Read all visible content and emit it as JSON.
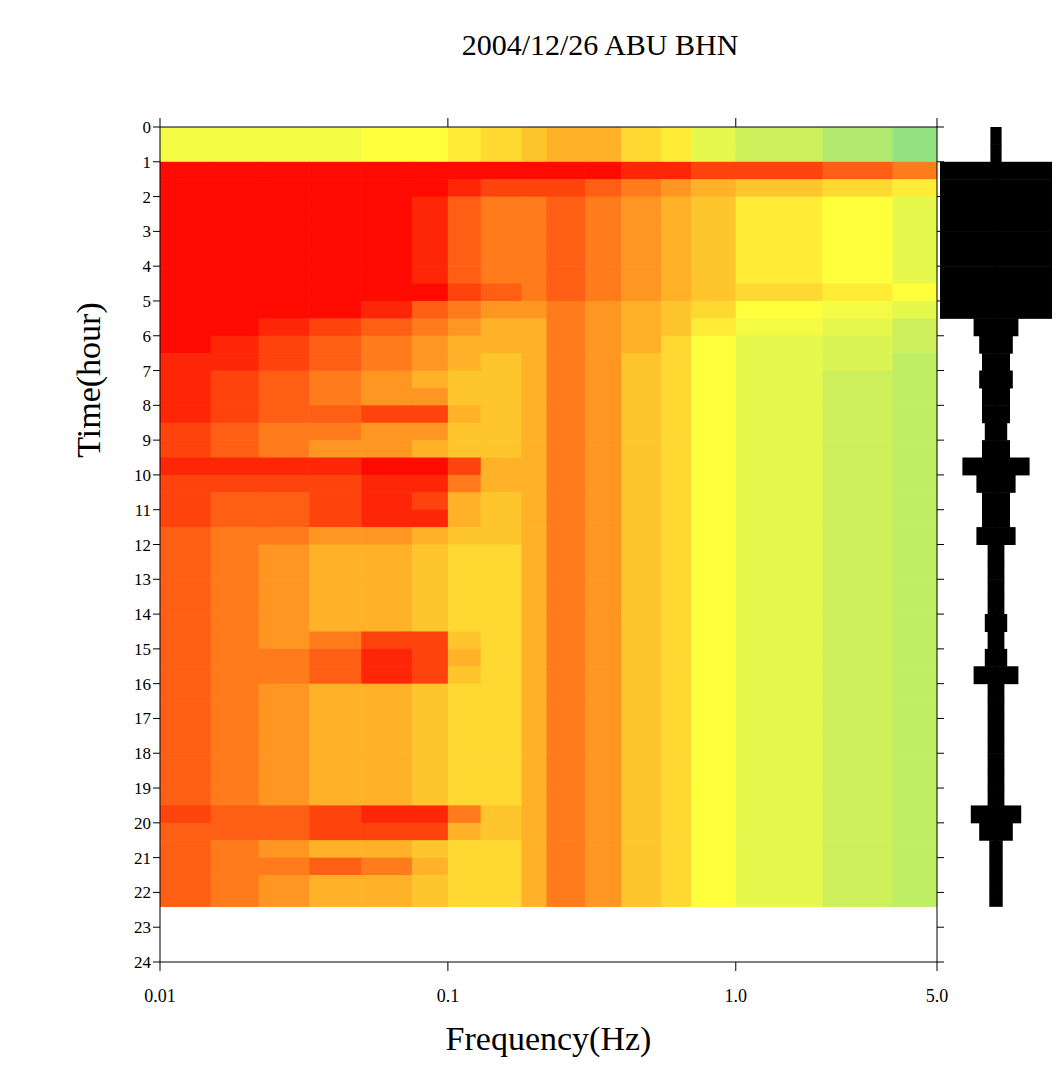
{
  "chart_data": {
    "type": "heatmap",
    "title": "2004/12/26 ABU BHN",
    "xlabel": "Frequency(Hz)",
    "ylabel": "Time(hour)",
    "log": "x",
    "xlim": [
      0.01,
      5
    ],
    "ylim": [
      0,
      24
    ],
    "xticks": [
      0.01,
      0.1,
      {
        "value": 1,
        "label": "1.0"
      },
      {
        "value": 5,
        "label": "5.0"
      }
    ],
    "yticks": [
      0,
      1,
      2,
      3,
      4,
      5,
      6,
      7,
      8,
      9,
      10,
      11,
      12,
      13,
      14,
      15,
      16,
      17,
      18,
      19,
      20,
      21,
      22,
      23,
      24
    ],
    "x_edges": [
      0.01,
      0.015,
      0.022,
      0.033,
      0.05,
      0.075,
      0.1,
      0.13,
      0.18,
      0.22,
      0.3,
      0.4,
      0.55,
      0.7,
      1,
      2,
      3.5,
      5
    ],
    "y_edges": [
      0,
      0.5,
      1,
      1.5,
      2,
      2.5,
      3,
      3.5,
      4,
      4.5,
      5,
      5.5,
      6,
      6.5,
      7,
      7.5,
      8,
      8.5,
      9,
      9.5,
      10,
      10.5,
      11,
      11.5,
      12,
      12.5,
      13,
      13.5,
      14,
      14.5,
      15,
      15.5,
      16,
      16.5,
      17,
      17.5,
      18,
      18.5,
      19,
      19.5,
      20,
      20.5,
      21,
      21.5,
      22,
      22.4
    ],
    "zlim": [
      0,
      10
    ],
    "cells": [
      [
        4.5,
        4.5,
        4.5,
        4.5,
        5,
        5,
        5.5,
        6,
        6.5,
        7,
        7,
        6,
        5.5,
        4,
        3,
        2,
        1
      ],
      [
        4.5,
        4.5,
        4.5,
        4.5,
        5,
        5,
        5.5,
        6,
        6.5,
        7,
        7,
        6,
        5.5,
        4,
        3,
        2,
        1
      ],
      [
        10,
        10,
        10,
        10,
        10,
        10,
        10,
        10,
        10,
        10,
        10,
        9.5,
        9.5,
        9,
        9,
        8.5,
        8
      ],
      [
        10,
        10,
        10,
        10,
        10,
        10,
        9.5,
        9,
        9,
        9,
        8.5,
        8,
        7.5,
        7,
        6.5,
        6,
        5.5
      ],
      [
        10,
        10,
        10,
        10,
        10,
        9.5,
        8.5,
        8,
        8,
        8.5,
        8,
        7.5,
        7,
        6.5,
        5.5,
        5,
        4
      ],
      [
        10,
        10,
        10,
        10,
        10,
        9.5,
        8.5,
        8,
        8,
        8.5,
        8,
        7.5,
        7,
        6.5,
        5.5,
        5,
        4
      ],
      [
        10,
        10,
        10,
        10,
        10,
        9.5,
        8.5,
        8,
        8,
        8.5,
        8,
        7.5,
        7,
        6.5,
        5.5,
        5,
        4
      ],
      [
        10,
        10,
        10,
        10,
        10,
        9.5,
        8.5,
        8,
        8,
        8.5,
        8,
        7.5,
        7,
        6.5,
        5.5,
        5,
        4
      ],
      [
        10,
        10,
        10,
        10,
        10,
        9.5,
        8.5,
        8,
        8,
        8.5,
        8,
        7.5,
        7,
        6.5,
        5.5,
        5,
        4
      ],
      [
        10,
        10,
        10,
        10,
        10,
        10,
        9,
        8.5,
        8,
        8.5,
        8,
        7.5,
        7,
        6.5,
        6,
        5.5,
        5
      ],
      [
        10,
        10,
        10,
        10,
        9.5,
        8.5,
        8,
        7.5,
        7.5,
        8,
        7.5,
        7,
        6.5,
        6,
        5,
        4.5,
        4
      ],
      [
        10,
        10,
        9.5,
        9,
        8.5,
        8,
        7.5,
        7,
        7,
        8,
        7.5,
        7,
        6.5,
        5.5,
        4.5,
        4,
        3
      ],
      [
        10,
        9.5,
        9,
        8.5,
        8,
        7.5,
        7,
        7,
        7,
        8,
        7.5,
        7,
        6,
        5,
        4,
        3.5,
        3
      ],
      [
        9.5,
        9.5,
        9,
        8.5,
        8,
        7.5,
        7,
        6.5,
        7,
        8,
        7.5,
        6.5,
        6,
        5,
        4,
        3.5,
        2.5
      ],
      [
        9.5,
        9,
        8.5,
        8,
        7.5,
        7,
        6.5,
        6.5,
        7,
        8,
        7.5,
        6.5,
        6,
        5,
        4,
        3,
        2.5
      ],
      [
        9.5,
        9,
        8.5,
        8,
        7.5,
        7.5,
        6.5,
        6.5,
        7,
        8,
        7.5,
        6.5,
        6,
        5,
        4,
        3,
        2.5
      ],
      [
        9.5,
        9,
        8.5,
        8.5,
        9,
        9,
        7,
        6.5,
        7,
        8,
        7.5,
        6.5,
        6,
        5,
        4,
        3,
        2.5
      ],
      [
        9,
        8.5,
        8,
        8,
        7.5,
        7.5,
        6.5,
        6.5,
        7,
        8,
        7.5,
        6.5,
        6,
        5,
        4,
        3,
        2.5
      ],
      [
        9,
        8.5,
        8,
        7.5,
        7.5,
        7,
        6.5,
        6.5,
        7,
        8,
        7.5,
        6.5,
        6,
        5,
        4,
        3,
        2.5
      ],
      [
        9.5,
        9.5,
        9.5,
        9.5,
        10,
        10,
        9,
        7,
        7,
        8,
        7.5,
        6.5,
        6,
        5,
        4,
        3,
        2.5
      ],
      [
        9,
        9,
        9,
        9,
        9.5,
        9.5,
        8,
        7,
        7,
        8,
        7.5,
        6.5,
        6,
        5,
        4,
        3,
        2.5
      ],
      [
        9,
        8.5,
        8.5,
        9,
        9.5,
        9,
        7,
        6.5,
        7,
        8,
        7.5,
        6.5,
        6,
        5,
        4,
        3,
        2.5
      ],
      [
        9,
        8.5,
        8.5,
        9,
        9.5,
        9.5,
        7,
        6.5,
        7,
        8,
        7.5,
        6.5,
        6,
        5,
        4,
        3,
        2.5
      ],
      [
        8.5,
        8,
        8,
        7.5,
        7.5,
        7,
        6.5,
        6.5,
        7,
        8,
        7.5,
        6.5,
        6,
        5,
        4,
        3,
        2.5
      ],
      [
        8.5,
        8,
        7.5,
        7,
        7,
        6.5,
        6,
        6,
        7,
        8,
        7.5,
        6.5,
        6,
        5,
        4,
        3,
        2.5
      ],
      [
        8.5,
        8,
        7.5,
        7,
        7,
        6.5,
        6,
        6,
        7,
        8,
        7.5,
        6.5,
        6,
        5,
        4,
        3,
        2.5
      ],
      [
        8.5,
        8,
        7.5,
        7,
        7,
        6.5,
        6,
        6,
        7,
        8,
        7.5,
        6.5,
        6,
        5,
        4,
        3,
        2.5
      ],
      [
        8.5,
        8,
        7.5,
        7,
        7,
        6.5,
        6,
        6,
        7,
        8,
        7.5,
        6.5,
        6,
        5,
        4,
        3,
        2.5
      ],
      [
        8.5,
        8,
        7.5,
        7,
        7,
        6.5,
        6,
        6,
        7,
        8,
        7.5,
        6.5,
        6,
        5,
        4,
        3,
        2.5
      ],
      [
        8.5,
        8,
        7.5,
        8,
        9,
        9,
        6.5,
        6,
        7,
        8,
        7.5,
        6.5,
        6,
        5,
        4,
        3,
        2.5
      ],
      [
        8.5,
        8,
        8,
        8.5,
        9.5,
        9,
        7,
        6,
        7,
        8,
        7.5,
        6.5,
        6,
        5,
        4,
        3,
        2.5
      ],
      [
        8.5,
        8,
        8,
        8.5,
        9.5,
        9,
        6.5,
        6,
        7,
        8,
        7.5,
        6.5,
        6,
        5,
        4,
        3,
        2.5
      ],
      [
        8.5,
        8,
        7.5,
        7,
        7,
        6.5,
        6,
        6,
        7,
        8,
        7.5,
        6.5,
        6,
        5,
        4,
        3,
        2.5
      ],
      [
        8.5,
        8,
        7.5,
        7,
        7,
        6.5,
        6,
        6,
        7,
        8,
        7.5,
        6.5,
        6,
        5,
        4,
        3,
        2.5
      ],
      [
        8.5,
        8,
        7.5,
        7,
        7,
        6.5,
        6,
        6,
        7,
        8,
        7.5,
        6.5,
        6,
        5,
        4,
        3,
        2.5
      ],
      [
        8.5,
        8,
        7.5,
        7,
        7,
        6.5,
        6,
        6,
        7,
        8,
        7.5,
        6.5,
        6,
        5,
        4,
        3,
        2.5
      ],
      [
        8.5,
        8,
        7.5,
        7,
        7,
        6.5,
        6,
        6,
        7,
        8,
        7.5,
        6.5,
        6,
        5,
        4,
        3,
        2.5
      ],
      [
        8.5,
        8,
        7.5,
        7,
        7,
        6.5,
        6,
        6,
        7,
        8,
        7.5,
        6.5,
        6,
        5,
        4,
        3,
        2.5
      ],
      [
        8.5,
        8,
        7.5,
        7,
        7,
        6.5,
        6,
        6,
        7,
        8,
        7.5,
        6.5,
        6,
        5,
        4,
        3,
        2.5
      ],
      [
        9,
        8.5,
        8.5,
        9,
        9.5,
        9.5,
        8,
        6.5,
        7,
        8,
        7.5,
        6.5,
        6,
        5,
        4,
        3,
        2.5
      ],
      [
        8.5,
        8.5,
        8.5,
        9,
        9,
        9,
        7,
        6.5,
        7,
        8,
        7.5,
        6.5,
        6,
        5,
        4,
        3,
        2.5
      ],
      [
        8.5,
        8,
        7.5,
        7,
        7,
        6.5,
        6,
        6,
        7,
        8,
        7.5,
        6.5,
        6,
        5,
        4,
        3,
        2.5
      ],
      [
        8.5,
        8,
        8,
        8.5,
        8,
        7,
        6,
        6,
        7,
        8,
        7.5,
        6.5,
        6,
        5,
        4,
        3,
        2.5
      ],
      [
        8.5,
        8,
        7.5,
        7,
        7,
        6.5,
        6,
        6,
        7,
        8,
        7.5,
        6.5,
        6,
        5,
        4,
        3,
        2.5
      ],
      [
        8.5,
        8,
        7.5,
        7,
        7,
        6.5,
        6,
        6,
        7,
        8,
        7.5,
        6.5,
        6,
        5,
        4,
        3,
        2.5
      ]
    ],
    "trace_lim": [
      0,
      1
    ],
    "trace_amplitude": [
      0.1,
      0.1,
      1,
      1,
      1,
      1,
      1,
      1,
      1,
      1,
      1,
      0.4,
      0.3,
      0.25,
      0.3,
      0.25,
      0.25,
      0.2,
      0.25,
      0.6,
      0.35,
      0.25,
      0.25,
      0.35,
      0.15,
      0.15,
      0.15,
      0.15,
      0.2,
      0.15,
      0.2,
      0.4,
      0.15,
      0.15,
      0.15,
      0.15,
      0.15,
      0.15,
      0.15,
      0.45,
      0.3,
      0.12,
      0.12,
      0.12,
      0.12
    ]
  }
}
